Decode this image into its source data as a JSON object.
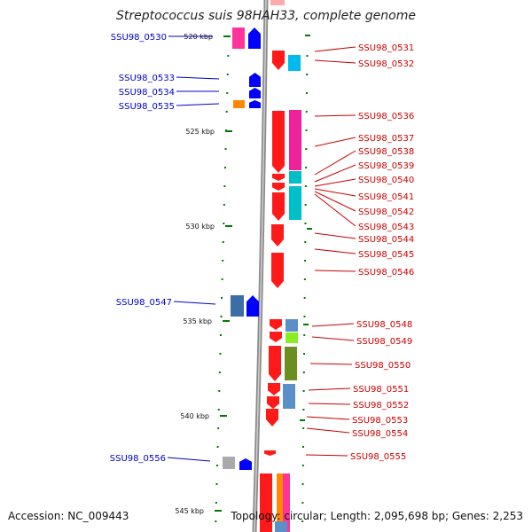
{
  "title": "Streptococcus suis 98HAH33, complete genome",
  "accession": "Accession: NC_009443",
  "topology": "Topology: circular; Length: 2,095,698 bp; Genes: 2,253",
  "colors": {
    "left_label": "#0000cc",
    "right_label": "#cc0000",
    "forward_gene": "#ff1a1a",
    "reverse_gene": "#0000ff",
    "tick": "#007a00",
    "backbone": "#8a8a8a"
  },
  "ticks": [
    "520 kbp",
    "525 kbp",
    "530 kbp",
    "535 kbp",
    "540 kbp",
    "545 kbp"
  ],
  "left_genes": [
    "SSU98_0530",
    "SSU98_0533",
    "SSU98_0534",
    "SSU98_0535",
    "SSU98_0547",
    "SSU98_0556"
  ],
  "right_genes": [
    "SSU98_0531",
    "SSU98_0532",
    "SSU98_0536",
    "SSU98_0537",
    "SSU98_0538",
    "SSU98_0539",
    "SSU98_0540",
    "SSU98_0541",
    "SSU98_0542",
    "SSU98_0543",
    "SSU98_0544",
    "SSU98_0545",
    "SSU98_0546",
    "SSU98_0548",
    "SSU98_0549",
    "SSU98_0550",
    "SSU98_0551",
    "SSU98_0552",
    "SSU98_0553",
    "SSU98_0554",
    "SSU98_0555"
  ]
}
